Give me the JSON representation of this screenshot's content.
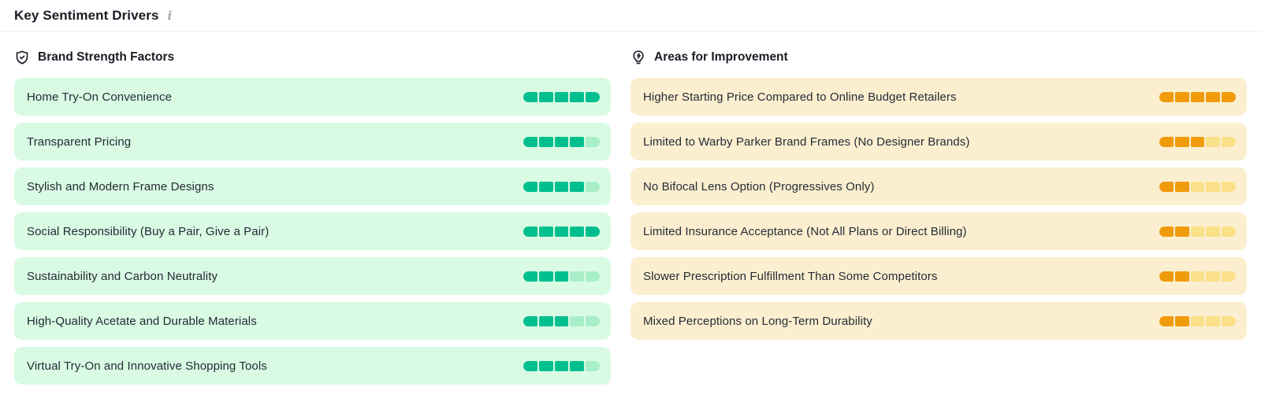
{
  "header": {
    "title": "Key Sentiment Drivers",
    "info_icon": "i"
  },
  "columns": {
    "strengths": {
      "title": "Brand Strength Factors",
      "icon": "shield-check-icon",
      "theme": {
        "item_bg": "#d9fbe4",
        "fill": "#00bf8e",
        "empty": "#a8efc9"
      },
      "items": [
        {
          "label": "Home Try-On Convenience",
          "score": 5,
          "max": 5
        },
        {
          "label": "Transparent Pricing",
          "score": 4,
          "max": 5
        },
        {
          "label": "Stylish and Modern Frame Designs",
          "score": 4,
          "max": 5
        },
        {
          "label": "Social Responsibility (Buy a Pair, Give a Pair)",
          "score": 5,
          "max": 5
        },
        {
          "label": "Sustainability and Carbon Neutrality",
          "score": 3,
          "max": 5
        },
        {
          "label": "High-Quality Acetate and Durable Materials",
          "score": 3,
          "max": 5
        },
        {
          "label": "Virtual Try-On and Innovative Shopping Tools",
          "score": 4,
          "max": 5
        }
      ]
    },
    "improvements": {
      "title": "Areas for Improvement",
      "icon": "lightbulb-bolt-icon",
      "theme": {
        "item_bg": "#fcefd0",
        "fill": "#f09b0c",
        "empty": "#fbe08a"
      },
      "items": [
        {
          "label": "Higher Starting Price Compared to Online Budget Retailers",
          "score": 5,
          "max": 5
        },
        {
          "label": "Limited to Warby Parker Brand Frames (No Designer Brands)",
          "score": 3,
          "max": 5
        },
        {
          "label": "No Bifocal Lens Option (Progressives Only)",
          "score": 2,
          "max": 5
        },
        {
          "label": "Limited Insurance Acceptance (Not All Plans or Direct Billing)",
          "score": 2,
          "max": 5
        },
        {
          "label": "Slower Prescription Fulfillment Than Some Competitors",
          "score": 2,
          "max": 5
        },
        {
          "label": "Mixed Perceptions on Long-Term Durability",
          "score": 2,
          "max": 5
        }
      ]
    }
  }
}
